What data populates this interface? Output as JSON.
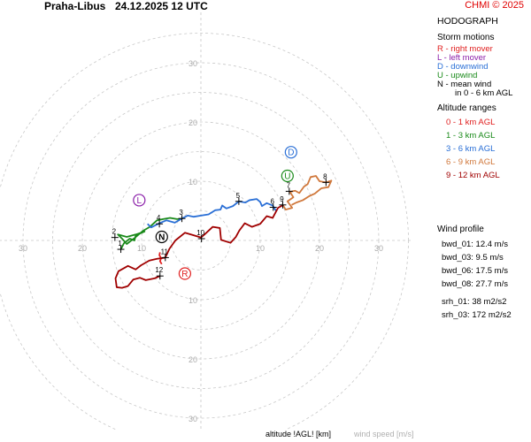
{
  "header": {
    "station": "Praha-Libus",
    "datetime": "24.12.2025 12 UTC",
    "copyright": "CHMI © 2025"
  },
  "panel": {
    "title": "HODOGRAPH",
    "storm_title": "Storm motions",
    "storm_items": [
      {
        "text": "R - right mover",
        "color": "#e02020"
      },
      {
        "text": "L - left mover",
        "color": "#8b1fa9"
      },
      {
        "text": "D - downwind",
        "color": "#2a6fd6"
      },
      {
        "text": "U - upwind",
        "color": "#1a8a1a"
      },
      {
        "text": "N - mean wind",
        "color": "#000000"
      },
      {
        "text": "in 0 - 6 km AGL",
        "color": "#000000"
      }
    ],
    "alt_title": "Altitude ranges",
    "alt_items": [
      {
        "text": "0 - 1 km AGL",
        "color": "#e02020"
      },
      {
        "text": "1 - 3 km AGL",
        "color": "#1a8a1a"
      },
      {
        "text": "3 - 6 km AGL",
        "color": "#2a6fd6"
      },
      {
        "text": "6 - 9 km AGL",
        "color": "#d0783c"
      },
      {
        "text": "9 - 12 km AGL",
        "color": "#a00000"
      }
    ],
    "wind_title": "Wind profile",
    "wind_items": [
      "bwd_01: 12.4 m/s",
      "bwd_03: 9.5 m/s",
      "bwd_06: 17.5 m/s",
      "bwd_08: 27.7 m/s"
    ],
    "srh_items": [
      "srh_01: 38 m2/s2",
      "srh_03: 172 m2/s2"
    ]
  },
  "footer": {
    "altitude_label": "altitude !AGL! [km]",
    "windspeed_label": "wind speed [m/s]"
  },
  "hodograph": {
    "rings": [
      5,
      10,
      15,
      20,
      25,
      30,
      35
    ],
    "labeled_rings": [
      10,
      20,
      30
    ],
    "height_markers": [
      {
        "label": "1",
        "u": -13.5,
        "v": -1.5
      },
      {
        "label": "2",
        "u": -14.5,
        "v": 0.5
      },
      {
        "label": "3",
        "u": -3.2,
        "v": 3.7
      },
      {
        "label": "4",
        "u": -7.0,
        "v": 2.8
      },
      {
        "label": "5",
        "u": 6.4,
        "v": 6.6
      },
      {
        "label": "6",
        "u": 12.2,
        "v": 5.6
      },
      {
        "label": "7",
        "u": 14.9,
        "v": 8.3
      },
      {
        "label": "8",
        "u": 21.1,
        "v": 9.8
      },
      {
        "label": "9",
        "u": 13.8,
        "v": 6.0
      },
      {
        "label": "10",
        "u": 0.1,
        "v": 0.3
      },
      {
        "label": "11",
        "u": -6.0,
        "v": -2.9
      },
      {
        "label": "12",
        "u": -6.9,
        "v": -6.0
      }
    ],
    "storm_motions": [
      {
        "label": "R",
        "u": -2.7,
        "v": -5.6,
        "color": "#e02020"
      },
      {
        "label": "L",
        "u": -10.4,
        "v": 6.8,
        "color": "#8b1fa9"
      },
      {
        "label": "D",
        "u": 15.2,
        "v": 14.9,
        "color": "#2a6fd6"
      },
      {
        "label": "U",
        "u": 14.6,
        "v": 10.9,
        "color": "#1a8a1a"
      },
      {
        "label": "N",
        "u": -6.6,
        "v": 0.6,
        "color": "#000000"
      }
    ],
    "segments": [
      {
        "range": "0-1",
        "color": "#e02020",
        "points": [
          [
            -6.9,
            -2.0
          ],
          [
            -7.0,
            -2.5
          ],
          [
            -6.7,
            -3.0
          ],
          [
            -6.9,
            -3.5
          ],
          [
            -6.6,
            -4.0
          ]
        ]
      },
      {
        "range": "1-3",
        "color": "#1a8a1a",
        "points": [
          [
            -13.5,
            -1.5
          ],
          [
            -13.0,
            -0.5
          ],
          [
            -12.0,
            0.3
          ],
          [
            -11.2,
            0.0
          ],
          [
            -11.0,
            0.8
          ],
          [
            -10.2,
            1.2
          ],
          [
            -9.5,
            1.5
          ],
          [
            -11.0,
            1.0
          ],
          [
            -12.5,
            0.6
          ],
          [
            -14.0,
            1.0
          ],
          [
            -13.2,
            0.2
          ],
          [
            -12.5,
            -0.6
          ],
          [
            -11.2,
            0.4
          ],
          [
            -9.8,
            1.6
          ],
          [
            -8.6,
            2.3
          ],
          [
            -7.4,
            3.4
          ],
          [
            -6.4,
            3.6
          ],
          [
            -5.2,
            3.8
          ],
          [
            -4.0,
            3.6
          ],
          [
            -3.2,
            3.7
          ]
        ]
      },
      {
        "range": "3-6",
        "color": "#2a6fd6",
        "points": [
          [
            -9.0,
            2.8
          ],
          [
            -8.4,
            2.2
          ],
          [
            -7.0,
            2.9
          ],
          [
            -5.8,
            3.4
          ],
          [
            -4.4,
            3.0
          ],
          [
            -3.2,
            3.7
          ],
          [
            -2.2,
            4.2
          ],
          [
            -1.2,
            4.0
          ],
          [
            0.0,
            4.2
          ],
          [
            1.3,
            4.4
          ],
          [
            2.4,
            5.1
          ],
          [
            3.3,
            5.2
          ],
          [
            3.6,
            5.9
          ],
          [
            4.3,
            5.4
          ],
          [
            5.4,
            5.8
          ],
          [
            6.4,
            6.6
          ],
          [
            7.5,
            6.4
          ],
          [
            8.2,
            6.8
          ],
          [
            9.4,
            7.0
          ],
          [
            10.0,
            6.5
          ],
          [
            10.3,
            5.8
          ],
          [
            11.1,
            6.3
          ],
          [
            12.1,
            5.9
          ],
          [
            12.7,
            5.0
          ],
          [
            12.2,
            5.6
          ]
        ]
      },
      {
        "range": "6-9",
        "color": "#d0783c",
        "points": [
          [
            13.8,
            6.0
          ],
          [
            14.3,
            5.2
          ],
          [
            15.4,
            5.5
          ],
          [
            14.6,
            6.6
          ],
          [
            15.6,
            7.3
          ],
          [
            15.0,
            8.2
          ],
          [
            15.9,
            8.4
          ],
          [
            16.6,
            8.0
          ],
          [
            17.4,
            9.1
          ],
          [
            18.0,
            9.5
          ],
          [
            18.5,
            10.7
          ],
          [
            19.4,
            10.9
          ],
          [
            20.0,
            10.0
          ],
          [
            21.1,
            9.8
          ],
          [
            22.0,
            10.1
          ],
          [
            21.5,
            9.0
          ],
          [
            20.3,
            8.8
          ],
          [
            19.2,
            7.9
          ],
          [
            18.3,
            7.5
          ],
          [
            17.2,
            6.8
          ],
          [
            16.1,
            6.4
          ],
          [
            15.3,
            6.0
          ]
        ]
      },
      {
        "range": "9-12",
        "color": "#a00000",
        "points": [
          [
            13.9,
            6.0
          ],
          [
            13.0,
            5.5
          ],
          [
            12.1,
            3.8
          ],
          [
            11.1,
            4.1
          ],
          [
            10.0,
            2.8
          ],
          [
            8.6,
            2.3
          ],
          [
            7.4,
            2.9
          ],
          [
            6.5,
            1.7
          ],
          [
            5.9,
            0.6
          ],
          [
            5.0,
            -0.4
          ],
          [
            3.4,
            0.1
          ],
          [
            3.2,
            2.1
          ],
          [
            2.0,
            2.3
          ],
          [
            0.6,
            1.0
          ],
          [
            0.0,
            0.5
          ],
          [
            -1.3,
            0.9
          ],
          [
            -2.7,
            1.3
          ],
          [
            -4.3,
            0.0
          ],
          [
            -5.3,
            -1.4
          ],
          [
            -6.0,
            -2.9
          ],
          [
            -7.4,
            -3.1
          ],
          [
            -8.7,
            -3.4
          ],
          [
            -10.1,
            -4.2
          ],
          [
            -11.0,
            -4.9
          ],
          [
            -12.3,
            -4.3
          ],
          [
            -13.9,
            -5.2
          ],
          [
            -14.4,
            -6.4
          ],
          [
            -14.2,
            -7.9
          ],
          [
            -13.3,
            -8.0
          ],
          [
            -12.3,
            -7.7
          ],
          [
            -11.4,
            -6.6
          ],
          [
            -10.3,
            -6.3
          ],
          [
            -9.3,
            -6.7
          ],
          [
            -7.8,
            -6.4
          ],
          [
            -6.9,
            -6.0
          ]
        ]
      }
    ]
  }
}
